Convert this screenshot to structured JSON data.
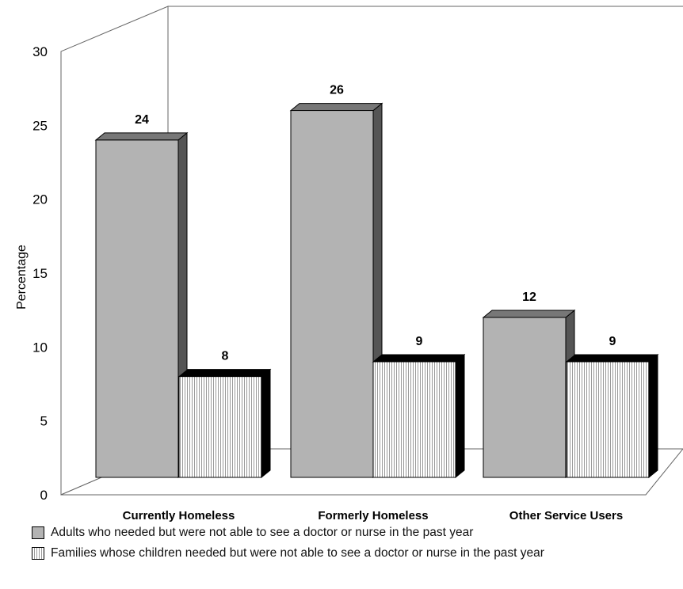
{
  "chart_data": {
    "type": "bar",
    "title": "",
    "xlabel": "",
    "ylabel": "Percentage",
    "ylim": [
      0,
      30
    ],
    "yticks": [
      0,
      5,
      10,
      15,
      20,
      25,
      30
    ],
    "categories": [
      "Currently Homeless",
      "Formerly Homeless",
      "Other Service Users"
    ],
    "series": [
      {
        "name": "Adults who needed but were not able to see a doctor or nurse in the past year",
        "values": [
          24,
          26,
          12
        ],
        "color": "#b3b3b3"
      },
      {
        "name": "Families whose children needed but were not able to see a doctor or nurse in the past year",
        "values": [
          8,
          9,
          9
        ],
        "color": "#ffffff"
      }
    ],
    "grid": false,
    "legend": "bottom"
  }
}
